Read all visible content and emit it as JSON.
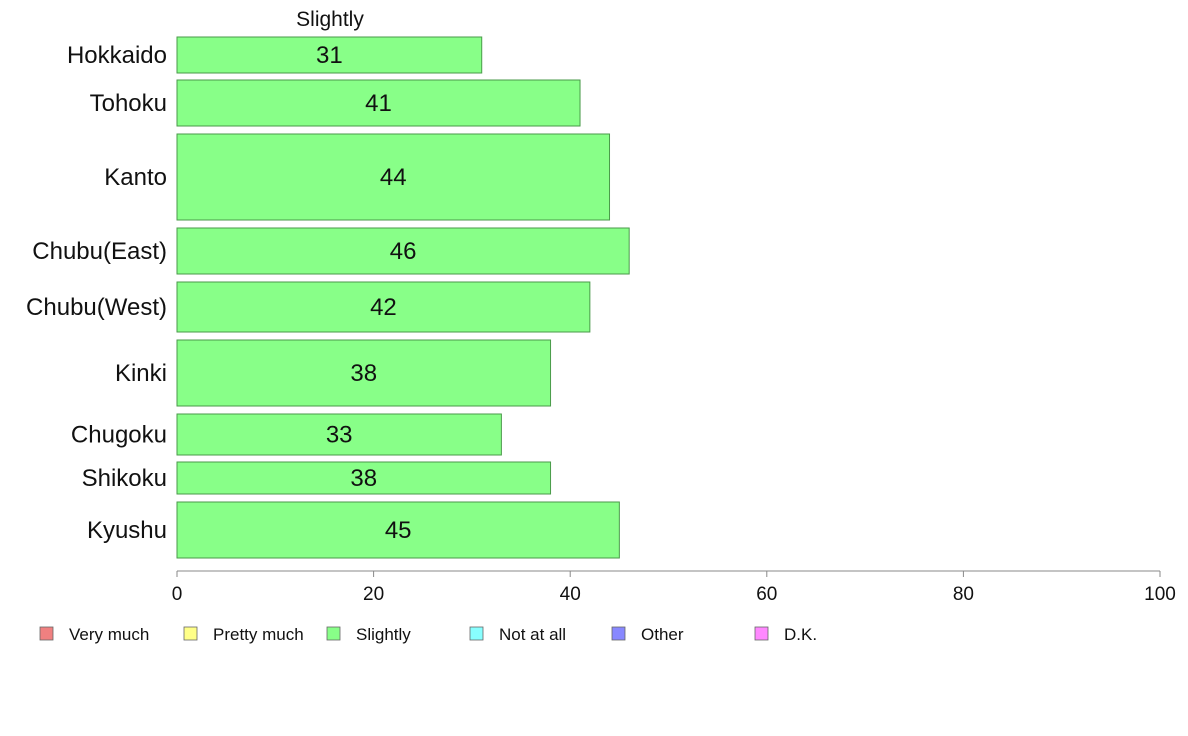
{
  "chart_data": {
    "type": "bar",
    "orientation": "horizontal",
    "series_title": "Slightly",
    "categories": [
      "Hokkaido",
      "Tohoku",
      "Kanto",
      "Chubu(East)",
      "Chubu(West)",
      "Kinki",
      "Chugoku",
      "Shikoku",
      "Kyushu"
    ],
    "series": [
      {
        "name": "Slightly",
        "values": [
          31,
          41,
          44,
          46,
          42,
          38,
          33,
          38,
          45
        ]
      }
    ],
    "xlim": [
      0,
      100
    ],
    "xticks": [
      0,
      20,
      40,
      60,
      80,
      100
    ],
    "bar_color": "#88ff88",
    "bar_stroke": "#4a9a4a",
    "legend": {
      "placement": "bottom",
      "items": [
        {
          "label": "Very much",
          "color": "#f08080"
        },
        {
          "label": "Pretty much",
          "color": "#ffff88"
        },
        {
          "label": "Slightly",
          "color": "#88ff88"
        },
        {
          "label": "Not at all",
          "color": "#88ffff"
        },
        {
          "label": "Other",
          "color": "#8888ff"
        },
        {
          "label": "D.K.",
          "color": "#ff88ff"
        }
      ]
    }
  }
}
